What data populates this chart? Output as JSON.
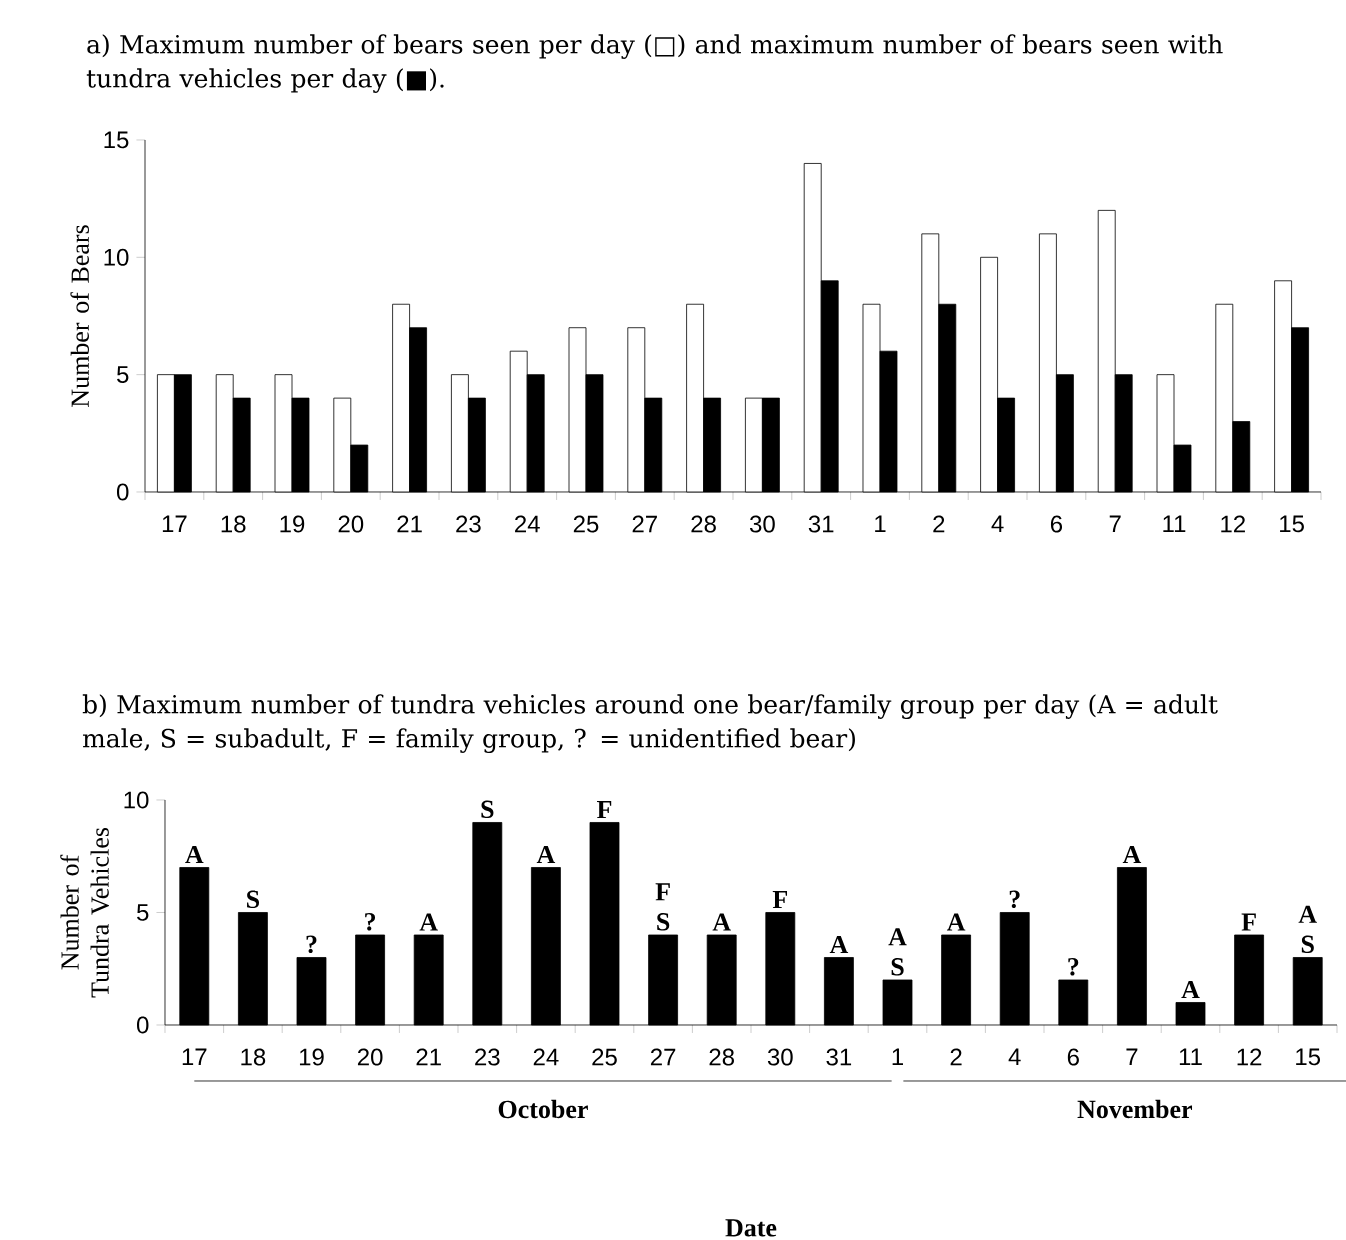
{
  "chart_data": [
    {
      "type": "bar",
      "title": "a) Maximum number of bears seen per day (□) and maximum number of bears seen with tundra vehicles per day (■).",
      "ylabel": "Number of Bears",
      "categories": [
        "17",
        "18",
        "19",
        "20",
        "21",
        "23",
        "24",
        "25",
        "27",
        "28",
        "30",
        "31",
        "1",
        "2",
        "4",
        "6",
        "7",
        "11",
        "12",
        "15"
      ],
      "series": [
        {
          "color": "#ffffff",
          "values": [
            5,
            5,
            5,
            4,
            8,
            5,
            6,
            7,
            7,
            8,
            4,
            14,
            8,
            11,
            10,
            11,
            12,
            5,
            8,
            9
          ]
        },
        {
          "color": "#000000",
          "values": [
            5,
            4,
            4,
            2,
            7,
            4,
            5,
            5,
            4,
            4,
            4,
            9,
            6,
            8,
            4,
            5,
            5,
            2,
            3,
            7
          ]
        }
      ],
      "ylim": [
        0,
        15
      ],
      "yticks": [
        0,
        5,
        10,
        15
      ]
    },
    {
      "type": "bar",
      "title": "b) Maximum number of tundra vehicles around one bear/family group per day (A = adult male, S = subadult, F = family group, ? = unidentified bear)",
      "ylabel": "Number of Tundra Vehicles",
      "xlabel": "Date",
      "categories": [
        "17",
        "18",
        "19",
        "20",
        "21",
        "23",
        "24",
        "25",
        "27",
        "28",
        "30",
        "31",
        "1",
        "2",
        "4",
        "6",
        "7",
        "11",
        "12",
        "15"
      ],
      "values": [
        7,
        5,
        3,
        4,
        4,
        9,
        7,
        9,
        4,
        4,
        5,
        3,
        2,
        4,
        5,
        2,
        7,
        1,
        4,
        3
      ],
      "color": "#000000",
      "value_labels": [
        "A",
        "S",
        "?",
        "?",
        "A",
        "S",
        "A",
        "F",
        "F S",
        "A",
        "F",
        "A",
        "A S",
        "A",
        "?",
        "?",
        "A",
        "A",
        "F",
        "A S"
      ],
      "annotations": [
        "October",
        "November"
      ],
      "ylim": [
        0,
        10
      ],
      "yticks": [
        0,
        5,
        10
      ]
    }
  ]
}
